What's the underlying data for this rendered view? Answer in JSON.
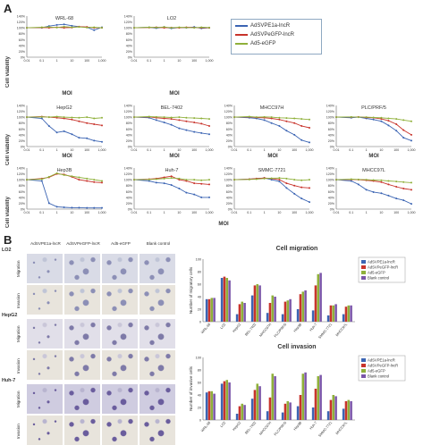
{
  "panel_a_label": "A",
  "panel_b_label": "B",
  "legend_a": [
    {
      "label": "AdSVPE1a-lncR",
      "color": "#3b64b3"
    },
    {
      "label": "AdSVPeGFP-lncR",
      "color": "#c8332b"
    },
    {
      "label": "Ad5-eGFP",
      "color": "#8fb03a"
    }
  ],
  "y_label_a": "Cell viability",
  "x_label_a": "MOI",
  "y_ticks": [
    "140%",
    "120%",
    "100%",
    "80%",
    "60%",
    "40%",
    "20%",
    "0%"
  ],
  "x_ticks": [
    "0.01",
    "0.1",
    "1",
    "10",
    "100",
    "1,000"
  ],
  "chart_data": [
    {
      "type": "line",
      "title": "WRL-68",
      "x": [
        0.01,
        0.1,
        0.3,
        1,
        3,
        10,
        30,
        100,
        300,
        1000
      ],
      "series": [
        {
          "name": "AdSVPE1a-lncR",
          "values": [
            100,
            100,
            106,
            110,
            112,
            107,
            104,
            102,
            92,
            102
          ]
        },
        {
          "name": "AdSVPeGFP-lncR",
          "values": [
            100,
            101,
            100,
            102,
            100,
            101,
            104,
            103,
            100,
            100
          ]
        },
        {
          "name": "Ad5-eGFP",
          "values": [
            100,
            102,
            103,
            101,
            104,
            102,
            103,
            101,
            102,
            100
          ]
        }
      ]
    },
    {
      "type": "line",
      "title": "LO2",
      "x": [
        0.01,
        0.1,
        0.3,
        1,
        3,
        10,
        30,
        100,
        300,
        1000
      ],
      "series": [
        {
          "name": "AdSVPE1a-lncR",
          "values": [
            100,
            102,
            99,
            103,
            98,
            101,
            100,
            103,
            98,
            100
          ]
        },
        {
          "name": "AdSVPeGFP-lncR",
          "values": [
            100,
            101,
            102,
            100,
            101,
            100,
            102,
            101,
            100,
            100
          ]
        },
        {
          "name": "Ad5-eGFP",
          "values": [
            100,
            102,
            101,
            103,
            100,
            102,
            101,
            100,
            102,
            101
          ]
        }
      ]
    },
    {
      "type": "line",
      "title": "HepG2",
      "x": [
        0.01,
        0.1,
        0.3,
        1,
        3,
        10,
        30,
        100,
        300,
        1000
      ],
      "series": [
        {
          "name": "AdSVPE1a-lncR",
          "values": [
            100,
            96,
            70,
            48,
            52,
            42,
            30,
            28,
            20,
            16
          ]
        },
        {
          "name": "AdSVPeGFP-lncR",
          "values": [
            100,
            102,
            100,
            98,
            96,
            92,
            86,
            80,
            76,
            72
          ]
        },
        {
          "name": "Ad5-eGFP",
          "values": [
            100,
            101,
            100,
            102,
            100,
            99,
            98,
            100,
            96,
            98
          ]
        }
      ]
    },
    {
      "type": "line",
      "title": "BEL-7402",
      "x": [
        0.01,
        0.1,
        0.3,
        1,
        3,
        10,
        30,
        100,
        300,
        1000
      ],
      "series": [
        {
          "name": "AdSVPE1a-lncR",
          "values": [
            100,
            98,
            90,
            82,
            74,
            62,
            56,
            50,
            46,
            42
          ]
        },
        {
          "name": "AdSVPeGFP-lncR",
          "values": [
            100,
            101,
            98,
            96,
            94,
            90,
            86,
            82,
            78,
            70
          ]
        },
        {
          "name": "Ad5-eGFP",
          "values": [
            100,
            102,
            101,
            100,
            99,
            100,
            98,
            97,
            96,
            94
          ]
        }
      ]
    },
    {
      "type": "line",
      "title": "MHCC97H",
      "x": [
        0.01,
        0.1,
        0.3,
        1,
        3,
        10,
        30,
        100,
        300,
        1000
      ],
      "series": [
        {
          "name": "AdSVPE1a-lncR",
          "values": [
            100,
            98,
            96,
            90,
            80,
            70,
            54,
            40,
            22,
            14
          ]
        },
        {
          "name": "AdSVPeGFP-lncR",
          "values": [
            100,
            101,
            99,
            98,
            96,
            92,
            86,
            80,
            70,
            64
          ]
        },
        {
          "name": "Ad5-eGFP",
          "values": [
            100,
            102,
            100,
            101,
            100,
            98,
            97,
            96,
            94,
            92
          ]
        }
      ]
    },
    {
      "type": "line",
      "title": "PLC/PRF/5",
      "x": [
        0.01,
        0.1,
        0.3,
        1,
        3,
        10,
        30,
        100,
        300,
        1000
      ],
      "series": [
        {
          "name": "AdSVPE1a-lncR",
          "values": [
            100,
            98,
            100,
            96,
            92,
            86,
            72,
            54,
            30,
            20
          ]
        },
        {
          "name": "AdSVPeGFP-lncR",
          "values": [
            100,
            100,
            101,
            99,
            98,
            94,
            88,
            76,
            56,
            40
          ]
        },
        {
          "name": "Ad5-eGFP",
          "values": [
            100,
            101,
            100,
            100,
            99,
            98,
            96,
            94,
            90,
            86
          ]
        }
      ]
    },
    {
      "type": "line",
      "title": "Hep3B",
      "x": [
        0.01,
        0.1,
        0.3,
        1,
        3,
        10,
        30,
        100,
        300,
        1000
      ],
      "series": [
        {
          "name": "AdSVPE1a-lncR",
          "values": [
            100,
            96,
            20,
            8,
            6,
            5,
            5,
            4,
            4,
            4
          ]
        },
        {
          "name": "AdSVPeGFP-lncR",
          "values": [
            100,
            104,
            108,
            120,
            118,
            110,
            100,
            96,
            92,
            90
          ]
        },
        {
          "name": "Ad5-eGFP",
          "values": [
            100,
            102,
            110,
            122,
            116,
            112,
            108,
            104,
            100,
            96
          ]
        }
      ]
    },
    {
      "type": "line",
      "title": "Huh-7",
      "x": [
        0.01,
        0.1,
        0.3,
        1,
        3,
        10,
        30,
        100,
        300,
        1000
      ],
      "series": [
        {
          "name": "AdSVPE1a-lncR",
          "values": [
            100,
            96,
            90,
            88,
            82,
            70,
            56,
            50,
            40,
            40
          ]
        },
        {
          "name": "AdSVPeGFP-lncR",
          "values": [
            100,
            102,
            104,
            108,
            112,
            100,
            96,
            88,
            86,
            84
          ]
        },
        {
          "name": "Ad5-eGFP",
          "values": [
            100,
            101,
            102,
            104,
            106,
            104,
            100,
            100,
            98,
            100
          ]
        }
      ]
    },
    {
      "type": "line",
      "title": "SMMC-7721",
      "x": [
        0.01,
        0.1,
        0.3,
        1,
        3,
        10,
        30,
        100,
        300,
        1000
      ],
      "series": [
        {
          "name": "AdSVPE1a-lncR",
          "values": [
            100,
            102,
            104,
            106,
            100,
            94,
            72,
            52,
            36,
            24
          ]
        },
        {
          "name": "AdSVPeGFP-lncR",
          "values": [
            100,
            102,
            104,
            106,
            104,
            100,
            88,
            80,
            74,
            72
          ]
        },
        {
          "name": "Ad5-eGFP",
          "values": [
            100,
            101,
            102,
            104,
            105,
            106,
            104,
            100,
            98,
            100
          ]
        }
      ]
    },
    {
      "type": "line",
      "title": "MHCC97L",
      "x": [
        0.01,
        0.1,
        0.3,
        1,
        3,
        10,
        30,
        100,
        300,
        1000
      ],
      "series": [
        {
          "name": "AdSVPE1a-lncR",
          "values": [
            100,
            96,
            84,
            66,
            58,
            54,
            46,
            36,
            30,
            18
          ]
        },
        {
          "name": "AdSVPeGFP-lncR",
          "values": [
            100,
            101,
            100,
            98,
            96,
            92,
            84,
            76,
            70,
            66
          ]
        },
        {
          "name": "Ad5-eGFP",
          "values": [
            100,
            102,
            101,
            100,
            99,
            98,
            96,
            94,
            92,
            90
          ]
        }
      ]
    },
    {
      "type": "bar",
      "title": "Cell migration",
      "ylabel": "Number of migratory cells",
      "ylim": [
        0,
        100
      ],
      "categories": [
        "WRL-68",
        "LO2",
        "HepG2",
        "BEL-7402",
        "MHCC97H",
        "PLC/PRF/5",
        "Hep3B",
        "Huh-7",
        "SMMC-7721",
        "MHCC97L"
      ],
      "series": [
        {
          "name": "AdSVPE1a-lncR",
          "values": [
            36,
            70,
            12,
            42,
            14,
            12,
            20,
            18,
            10,
            12
          ]
        },
        {
          "name": "AdSVPeGFP-lncR",
          "values": [
            36,
            72,
            28,
            58,
            30,
            32,
            44,
            58,
            26,
            24
          ]
        },
        {
          "name": "Ad5-eGFP",
          "values": [
            38,
            70,
            32,
            60,
            42,
            34,
            48,
            76,
            26,
            26
          ]
        },
        {
          "name": "Blank control",
          "values": [
            38,
            66,
            30,
            58,
            40,
            36,
            50,
            78,
            28,
            26
          ]
        }
      ]
    },
    {
      "type": "bar",
      "title": "Cell invasion",
      "ylabel": "Number of invasive cells",
      "ylim": [
        0,
        100
      ],
      "categories": [
        "WRL-68",
        "LO2",
        "HepG2",
        "BEL-7402",
        "MHCC97H",
        "PLC/PRF/5",
        "Hep3B",
        "Huh-7",
        "SMMC-7721",
        "MHCC97L"
      ],
      "series": [
        {
          "name": "AdSVPE1a-lncR",
          "values": [
            44,
            58,
            10,
            34,
            14,
            12,
            22,
            20,
            14,
            18
          ]
        },
        {
          "name": "AdSVPeGFP-lncR",
          "values": [
            46,
            62,
            22,
            48,
            36,
            26,
            40,
            50,
            32,
            30
          ]
        },
        {
          "name": "Ad5-eGFP",
          "values": [
            46,
            64,
            26,
            58,
            74,
            30,
            74,
            70,
            40,
            32
          ]
        },
        {
          "name": "Blank control",
          "values": [
            42,
            60,
            24,
            54,
            70,
            28,
            76,
            72,
            38,
            30
          ]
        }
      ]
    }
  ],
  "legend_b": [
    {
      "label": "AdSVPE1a-lncR",
      "color": "#3b64b3"
    },
    {
      "label": "AdSVPeGFP-lncR",
      "color": "#c8332b"
    },
    {
      "label": "Ad5-eGFP",
      "color": "#8fb03a"
    },
    {
      "label": "Blank control",
      "color": "#7b56a8"
    }
  ],
  "micro_cols": [
    "AdSVPE1a-lncR",
    "AdSVPeGFP-lncR",
    "Ad5-eGFP",
    "Blank control"
  ],
  "micro_rows": [
    {
      "group": "LO2",
      "rows": [
        "Migration",
        "Invasion"
      ]
    },
    {
      "group": "HepG2",
      "rows": [
        "Migration",
        "Invasion"
      ]
    },
    {
      "group": "Huh-7",
      "rows": [
        "Migration",
        "Invasion"
      ]
    }
  ]
}
